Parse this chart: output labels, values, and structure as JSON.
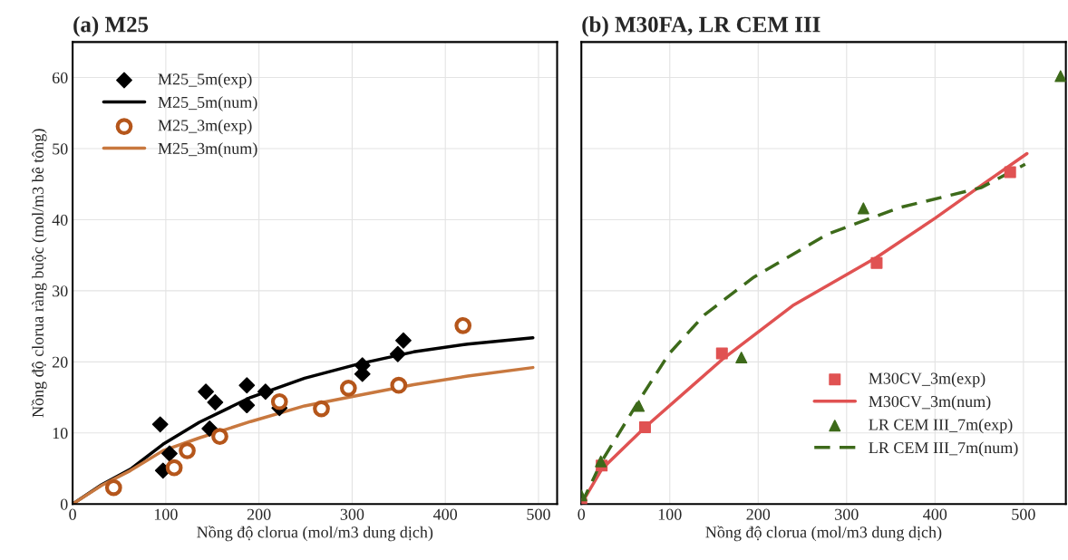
{
  "chart_data": [
    {
      "type": "scatter",
      "title": "(a) M25",
      "xlabel": "Nồng độ clorua (mol/m3 dung dịch)",
      "ylabel": "Nồng độ clorua ràng buộc (mol/m3 bê tông)",
      "xlim": [
        0,
        520
      ],
      "ylim": [
        0,
        65
      ],
      "xticks": [
        0,
        100,
        200,
        300,
        400,
        500
      ],
      "yticks": [
        0,
        10,
        20,
        30,
        40,
        50,
        60
      ],
      "grid": true,
      "legend": "top left",
      "series": [
        {
          "name": "M25_5m(exp)",
          "marker": "diamond",
          "color": "#000000",
          "x": [
            94,
            97,
            104,
            143,
            153,
            147,
            187,
            187,
            207,
            222,
            311,
            311,
            349,
            355
          ],
          "values": [
            11.2,
            4.7,
            7.1,
            15.8,
            14.3,
            10.6,
            16.7,
            13.9,
            15.8,
            13.5,
            19.5,
            18.3,
            21.1,
            23.0
          ]
        },
        {
          "name": "M25_5m(num)",
          "type": "line",
          "line_style": "solid",
          "color": "#000000",
          "x": [
            0,
            31,
            62,
            97,
            136,
            191,
            249,
            307,
            366,
            424,
            494
          ],
          "values": [
            0,
            2.7,
            4.9,
            8.4,
            11.5,
            15.0,
            17.7,
            19.7,
            21.4,
            22.5,
            23.4
          ]
        },
        {
          "name": "M25_3m(exp)",
          "marker": "circle",
          "color": "#b5561b",
          "x": [
            44,
            109,
            123,
            158,
            222,
            267,
            296,
            350,
            419
          ],
          "values": [
            2.3,
            5.1,
            7.5,
            9.5,
            14.4,
            13.4,
            16.3,
            16.7,
            25.1
          ]
        },
        {
          "name": "M25_3m(num)",
          "type": "line",
          "line_style": "solid",
          "color": "#c8783f",
          "x": [
            0,
            31,
            62,
            97,
            136,
            191,
            249,
            307,
            366,
            424,
            494
          ],
          "values": [
            0,
            2.6,
            4.7,
            7.5,
            9.3,
            11.6,
            13.8,
            15.3,
            16.8,
            18.0,
            19.2
          ]
        }
      ]
    },
    {
      "type": "scatter",
      "title": "(b) M30FA, LR CEM III",
      "xlabel": "Nồng độ clorua (mol/m3 dung dịch)",
      "xlim": [
        0,
        548
      ],
      "ylim": [
        0,
        65
      ],
      "xticks": [
        0,
        100,
        200,
        300,
        400,
        500
      ],
      "yticks": [
        0,
        10,
        20,
        30,
        40,
        50,
        60
      ],
      "tick_labels": "x",
      "grid": true,
      "legend": "bottom right",
      "series": [
        {
          "name": "M30CV_3m(exp)",
          "marker": "square",
          "color": "#e05252",
          "x": [
            0,
            23,
            72,
            159,
            334,
            485
          ],
          "values": [
            0,
            5.4,
            10.8,
            21.2,
            33.9,
            46.7
          ]
        },
        {
          "name": "M30CV_3m(num)",
          "type": "line",
          "line_style": "solid",
          "color": "#e05252",
          "x": [
            0,
            23,
            72,
            159,
            239,
            334,
            400,
            452,
            504
          ],
          "values": [
            0,
            4.9,
            10.8,
            20.3,
            27.9,
            34.7,
            40.2,
            44.8,
            49.3
          ]
        },
        {
          "name": "LR CEM III_7m(exp)",
          "marker": "triangle",
          "color": "#3d6a1a",
          "x": [
            0,
            22,
            65,
            181,
            319,
            542
          ],
          "values": [
            1.2,
            6.0,
            13.8,
            20.6,
            41.6,
            60.2
          ]
        },
        {
          "name": "LR CEM III_7m(num)",
          "type": "line",
          "line_style": "dashed",
          "color": "#3d6a1a",
          "x": [
            0,
            23,
            65,
            99,
            139,
            195,
            279,
            360,
            452,
            502
          ],
          "values": [
            0,
            6,
            14.5,
            21.1,
            26.6,
            31.9,
            38.0,
            41.7,
            44.5,
            47.8
          ]
        }
      ]
    }
  ]
}
